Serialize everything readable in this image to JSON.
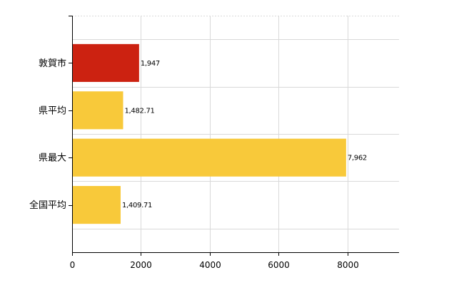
{
  "chart_data": {
    "type": "bar",
    "orientation": "horizontal",
    "categories": [
      "敦賀市",
      "県平均",
      "県最大",
      "全国平均"
    ],
    "values": [
      1947,
      1482.71,
      7962,
      1409.71
    ],
    "data_labels": [
      "1,947",
      "1,482.71",
      "7,962",
      "1,409.71"
    ],
    "colors": [
      "#cc2211",
      "#f8c93a",
      "#f8c93a",
      "#f8c93a"
    ],
    "xlim": [
      0,
      9500
    ],
    "xticks": [
      0,
      2000,
      4000,
      6000,
      8000
    ],
    "xtick_labels": [
      "0",
      "2000",
      "4000",
      "6000",
      "8000"
    ],
    "grid": true,
    "legend": "none",
    "title": "",
    "xlabel": "",
    "ylabel": ""
  }
}
